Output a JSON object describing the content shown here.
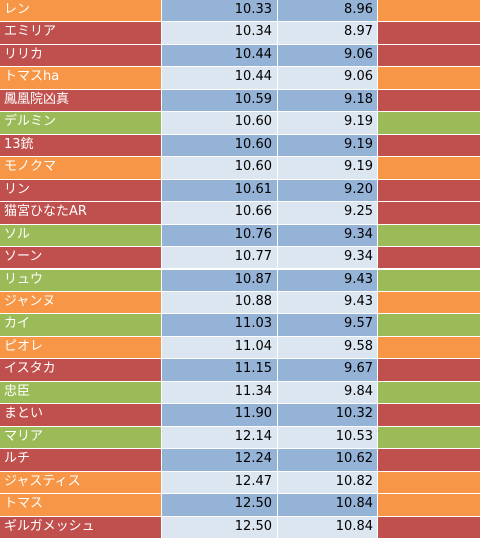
{
  "colors": {
    "orange": "#f79646",
    "red": "#c0504d",
    "green": "#9bbb59",
    "blue_dark": "#95b3d7",
    "blue_light": "#dce6f1"
  },
  "rows": [
    {
      "name": "レン",
      "v1": "10.33",
      "v2": "8.96",
      "color": "orange",
      "shade": "dark"
    },
    {
      "name": "エミリア",
      "v1": "10.34",
      "v2": "8.97",
      "color": "red",
      "shade": "light"
    },
    {
      "name": "リリカ",
      "v1": "10.44",
      "v2": "9.06",
      "color": "red",
      "shade": "dark"
    },
    {
      "name": "トマスha",
      "v1": "10.44",
      "v2": "9.06",
      "color": "orange",
      "shade": "light"
    },
    {
      "name": "鳳凰院凶真",
      "v1": "10.59",
      "v2": "9.18",
      "color": "red",
      "shade": "dark"
    },
    {
      "name": "デルミン",
      "v1": "10.60",
      "v2": "9.19",
      "color": "green",
      "shade": "light"
    },
    {
      "name": "13銃",
      "v1": "10.60",
      "v2": "9.19",
      "color": "red",
      "shade": "dark"
    },
    {
      "name": "モノクマ",
      "v1": "10.60",
      "v2": "9.19",
      "color": "orange",
      "shade": "light"
    },
    {
      "name": "リン",
      "v1": "10.61",
      "v2": "9.20",
      "color": "red",
      "shade": "dark"
    },
    {
      "name": "猫宮ひなたAR",
      "v1": "10.66",
      "v2": "9.25",
      "color": "red",
      "shade": "light"
    },
    {
      "name": "ソル",
      "v1": "10.76",
      "v2": "9.34",
      "color": "green",
      "shade": "dark"
    },
    {
      "name": "ソーン",
      "v1": "10.77",
      "v2": "9.34",
      "color": "red",
      "shade": "light"
    },
    {
      "name": "リュウ",
      "v1": "10.87",
      "v2": "9.43",
      "color": "green",
      "shade": "dark"
    },
    {
      "name": "ジャンヌ",
      "v1": "10.88",
      "v2": "9.43",
      "color": "orange",
      "shade": "light"
    },
    {
      "name": "カイ",
      "v1": "11.03",
      "v2": "9.57",
      "color": "green",
      "shade": "dark"
    },
    {
      "name": "ピオレ",
      "v1": "11.04",
      "v2": "9.58",
      "color": "orange",
      "shade": "light"
    },
    {
      "name": "イスタカ",
      "v1": "11.15",
      "v2": "9.67",
      "color": "red",
      "shade": "dark"
    },
    {
      "name": "忠臣",
      "v1": "11.34",
      "v2": "9.84",
      "color": "green",
      "shade": "light"
    },
    {
      "name": "まとい",
      "v1": "11.90",
      "v2": "10.32",
      "color": "red",
      "shade": "dark"
    },
    {
      "name": "マリア",
      "v1": "12.14",
      "v2": "10.53",
      "color": "green",
      "shade": "light"
    },
    {
      "name": "ルチ",
      "v1": "12.24",
      "v2": "10.62",
      "color": "red",
      "shade": "dark"
    },
    {
      "name": "ジャスティス",
      "v1": "12.47",
      "v2": "10.82",
      "color": "orange",
      "shade": "light"
    },
    {
      "name": "トマス",
      "v1": "12.50",
      "v2": "10.84",
      "color": "orange",
      "shade": "dark"
    },
    {
      "name": "ギルガメッシュ",
      "v1": "12.50",
      "v2": "10.84",
      "color": "red",
      "shade": "light"
    }
  ]
}
